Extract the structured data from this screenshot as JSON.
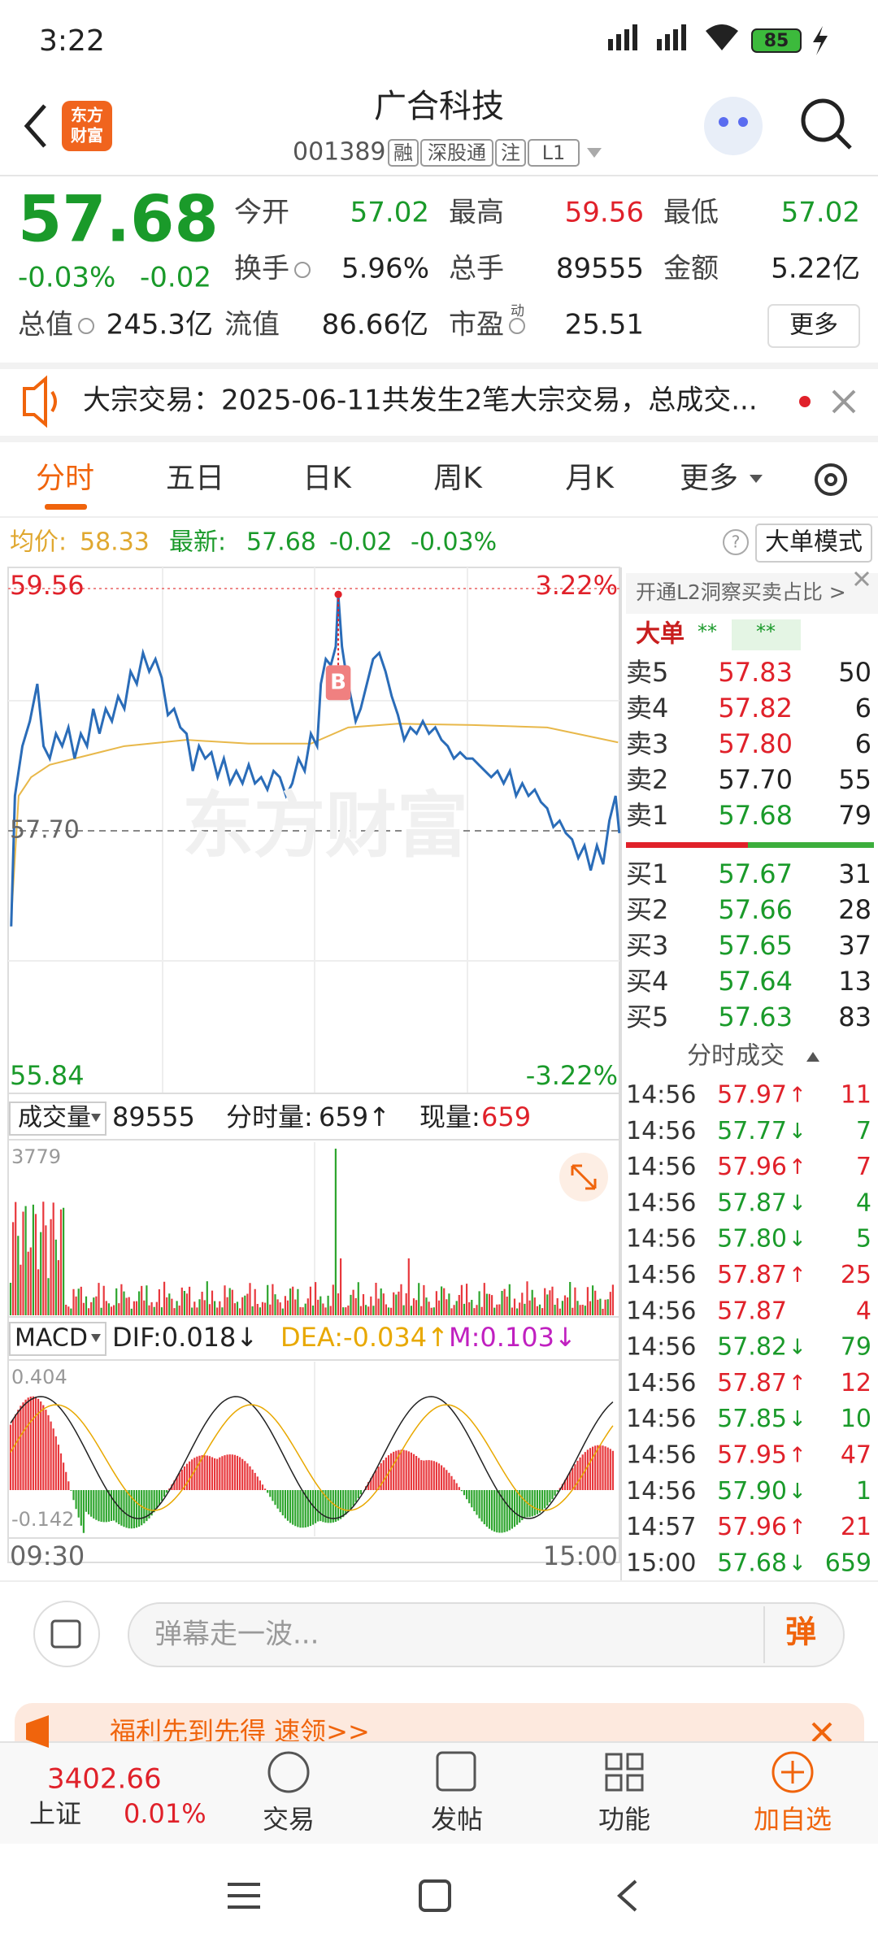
{
  "status": {
    "time": "3:22",
    "battery": "85"
  },
  "header": {
    "title": "广合科技",
    "code": "001389",
    "tags": [
      "融",
      "深股通",
      "注",
      "L1"
    ],
    "logo": [
      "东方",
      "财富"
    ]
  },
  "quote": {
    "price": "57.68",
    "change_pct": "-0.03%",
    "change": "-0.02",
    "fields": [
      {
        "label": "今开",
        "value": "57.02",
        "color": "green"
      },
      {
        "label": "最高",
        "value": "59.56",
        "color": "red"
      },
      {
        "label": "最低",
        "value": "57.02",
        "color": "green"
      },
      {
        "label": "换手",
        "value": "5.96%"
      },
      {
        "label": "总手",
        "value": "89555"
      },
      {
        "label": "金额",
        "value": "5.22亿"
      },
      {
        "label": "总值",
        "value": "245.3亿"
      },
      {
        "label": "流值",
        "value": "86.66亿"
      },
      {
        "label": "市盈",
        "value": "25.51",
        "sup": "动"
      }
    ],
    "more": "更多"
  },
  "notice": "大宗交易：2025-06-11共发生2笔大宗交易，总成交...",
  "tabs": [
    "分时",
    "五日",
    "日K",
    "周K",
    "月K",
    "更多"
  ],
  "info": {
    "avg_label": "均价:",
    "avg": "58.33",
    "last_label": "最新:",
    "last": "57.68",
    "change": "-0.02",
    "change_pct": "-0.03%",
    "mode": "大单模式"
  },
  "chart": {
    "high": "59.56",
    "high_pct": "3.22%",
    "low": "55.84",
    "low_pct": "-3.22%",
    "mid": "57.70",
    "watermark": "东方财富",
    "b_marker": "B",
    "start": "09:30",
    "end": "15:00"
  },
  "volume": {
    "label": "成交量",
    "total": "89555",
    "minute_label": "分时量:",
    "minute": "659↑",
    "now_label": "现量:",
    "now": "659",
    "max": "3779"
  },
  "macd": {
    "label": "MACD",
    "dif": "DIF:0.018↓",
    "dea": "DEA:-0.034↑",
    "m": "M:0.103↓",
    "max": "0.404",
    "min": "-0.142"
  },
  "book": {
    "promo": "开通L2洞察买卖占比 >",
    "big": "大单",
    "stars": [
      "**",
      "**"
    ],
    "sell": [
      {
        "label": "卖5",
        "price": "57.83",
        "vol": "50",
        "color": "red"
      },
      {
        "label": "卖4",
        "price": "57.82",
        "vol": "6",
        "color": "red"
      },
      {
        "label": "卖3",
        "price": "57.80",
        "vol": "6",
        "color": "red"
      },
      {
        "label": "卖2",
        "price": "57.70",
        "vol": "55",
        "color": "black"
      },
      {
        "label": "卖1",
        "price": "57.68",
        "vol": "79",
        "color": "green"
      }
    ],
    "buy": [
      {
        "label": "买1",
        "price": "57.67",
        "vol": "31",
        "color": "green"
      },
      {
        "label": "买2",
        "price": "57.66",
        "vol": "28",
        "color": "green"
      },
      {
        "label": "买3",
        "price": "57.65",
        "vol": "37",
        "color": "green"
      },
      {
        "label": "买4",
        "price": "57.64",
        "vol": "13",
        "color": "green"
      },
      {
        "label": "买5",
        "price": "57.63",
        "vol": "83",
        "color": "green"
      }
    ]
  },
  "trades": {
    "title": "分时成交",
    "rows": [
      {
        "time": "14:56",
        "price": "57.97",
        "arrow": "↑",
        "vol": "11"
      },
      {
        "time": "14:56",
        "price": "57.77",
        "arrow": "↓",
        "vol": "7"
      },
      {
        "time": "14:56",
        "price": "57.96",
        "arrow": "↑",
        "vol": "7"
      },
      {
        "time": "14:56",
        "price": "57.87",
        "arrow": "↓",
        "vol": "4"
      },
      {
        "time": "14:56",
        "price": "57.80",
        "arrow": "↓",
        "vol": "5"
      },
      {
        "time": "14:56",
        "price": "57.87",
        "arrow": "↑",
        "vol": "25"
      },
      {
        "time": "14:56",
        "price": "57.87",
        "vol": "4"
      },
      {
        "time": "14:56",
        "price": "57.82",
        "arrow": "↓",
        "vol": "79"
      },
      {
        "time": "14:56",
        "price": "57.87",
        "arrow": "↑",
        "vol": "12"
      },
      {
        "time": "14:56",
        "price": "57.85",
        "arrow": "↓",
        "vol": "10"
      },
      {
        "time": "14:56",
        "price": "57.95",
        "arrow": "↑",
        "vol": "47"
      },
      {
        "time": "14:56",
        "price": "57.90",
        "arrow": "↓",
        "vol": "1"
      },
      {
        "time": "14:57",
        "price": "57.96",
        "arrow": "↑",
        "vol": "21"
      },
      {
        "time": "15:00",
        "price": "57.68",
        "arrow": "↓",
        "vol": "659"
      }
    ]
  },
  "danmu": {
    "placeholder": "弹幕走一波...",
    "button": "弹"
  },
  "banner": "福利先到先得  速领>>",
  "nav": {
    "index_value": "3402.66",
    "index_name": "上证",
    "index_change": "0.01%",
    "items": [
      "交易",
      "发帖",
      "功能",
      "加自选"
    ]
  }
}
